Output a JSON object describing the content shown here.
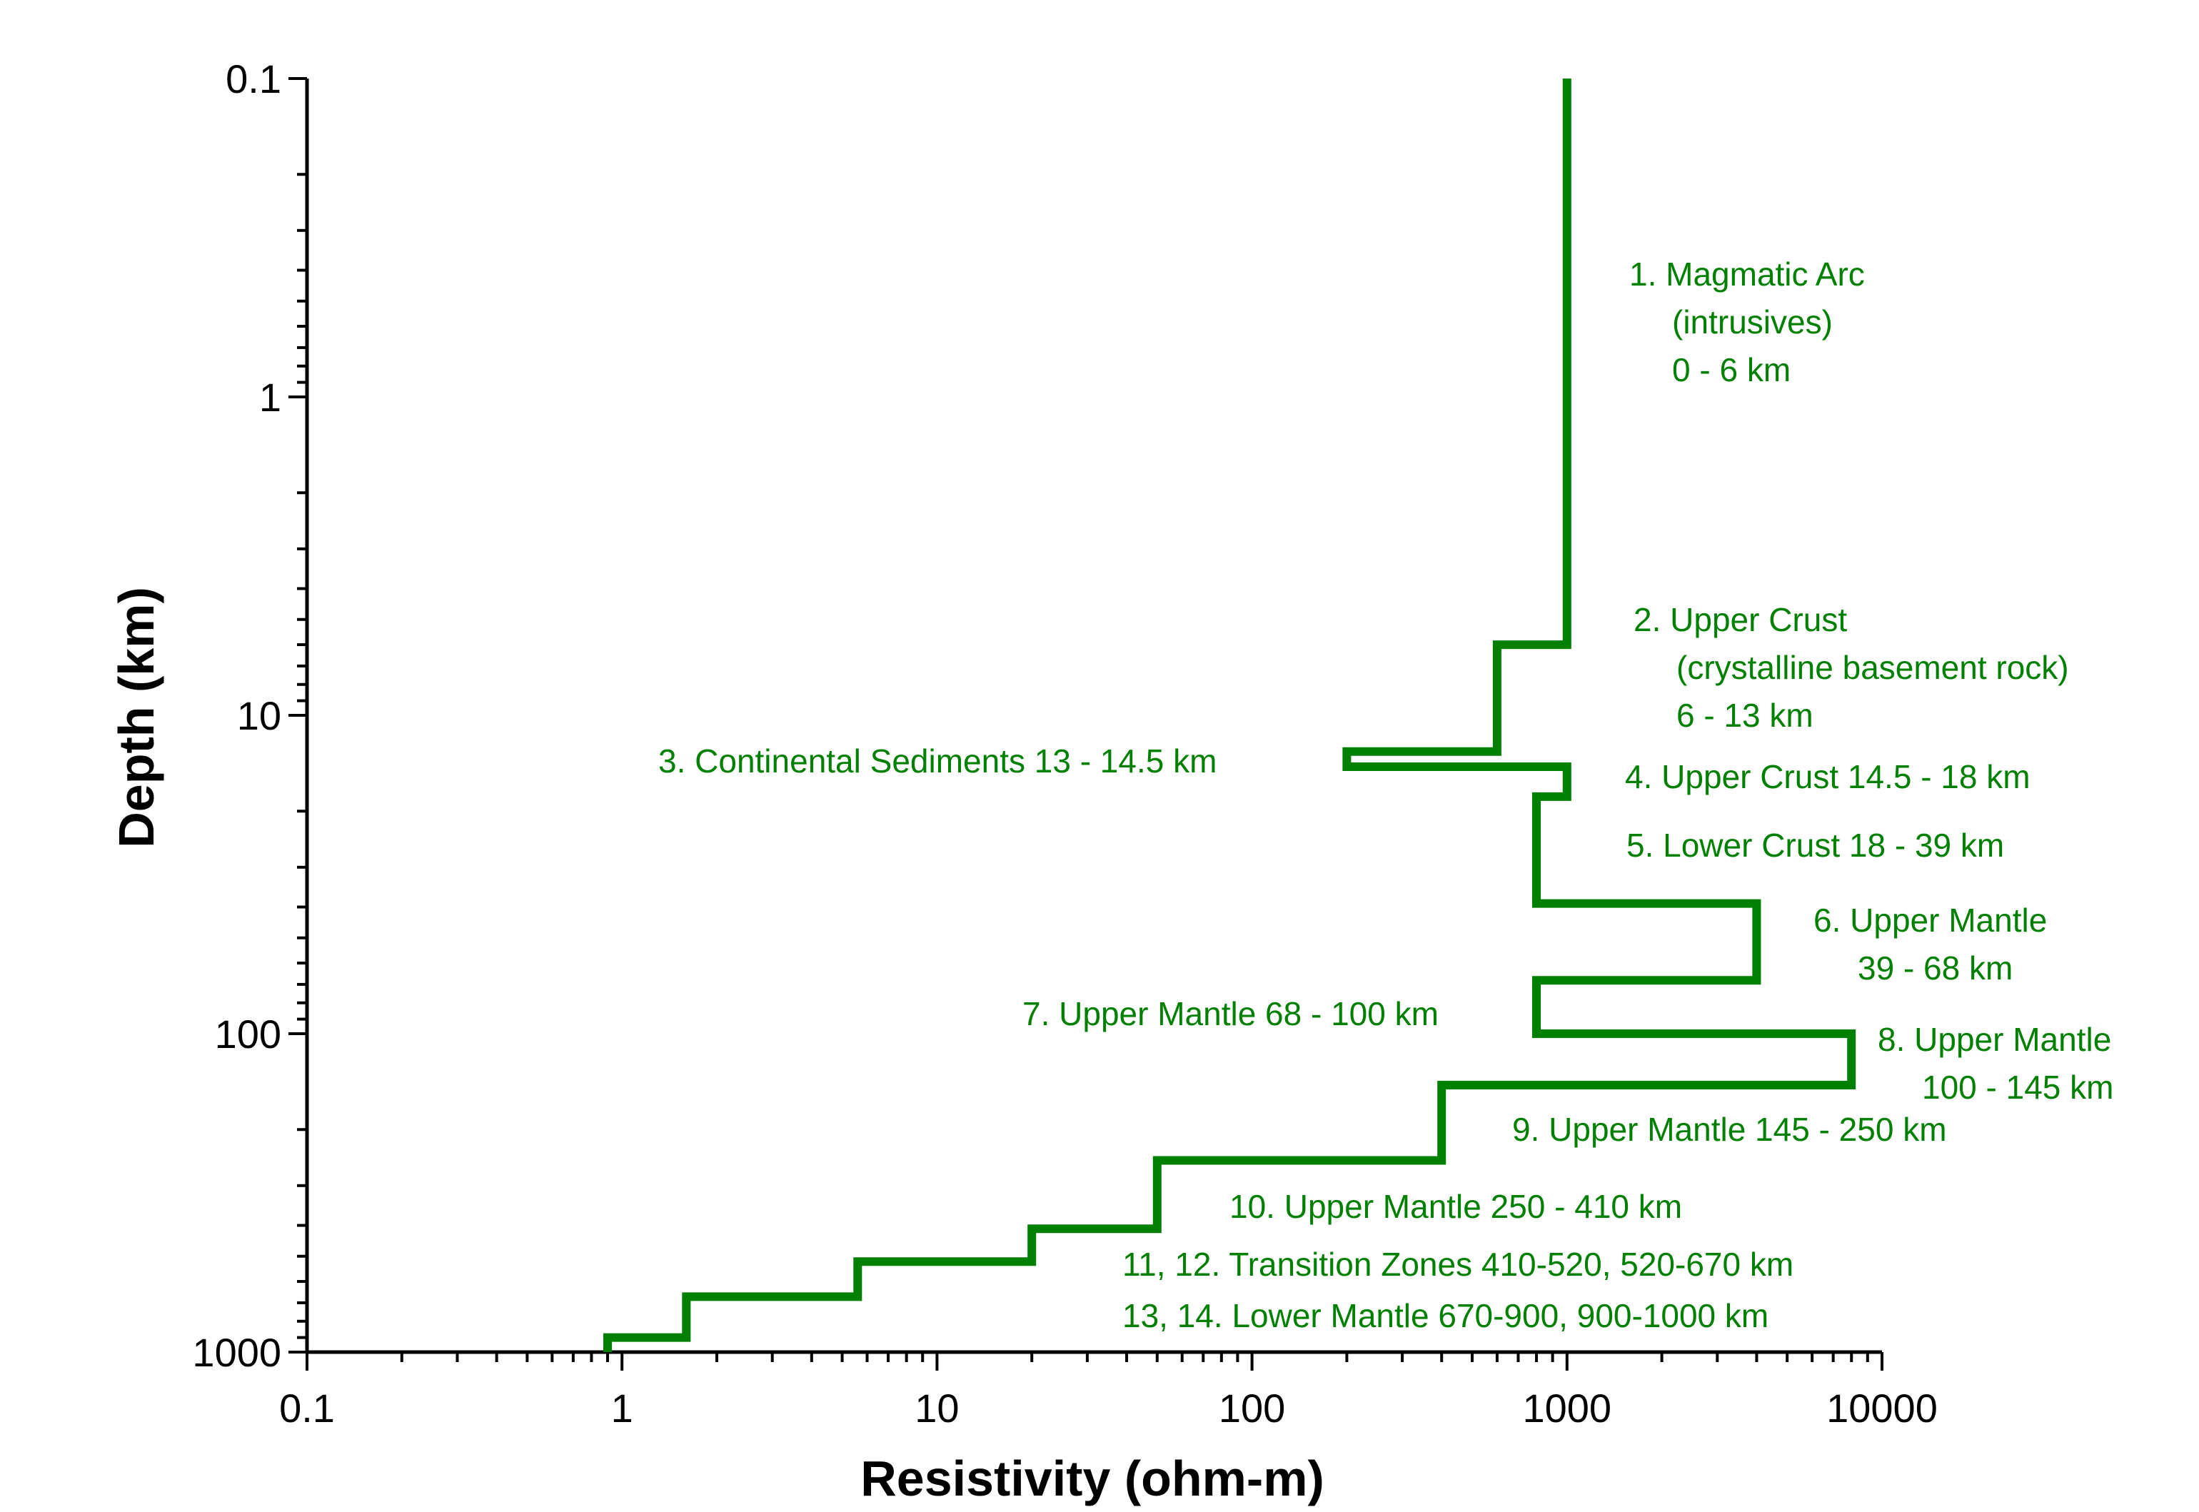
{
  "chart_data": {
    "type": "line",
    "step": true,
    "xlabel": "Resistivity (ohm-m)",
    "ylabel": "Depth (km)",
    "x_scale": "log",
    "y_scale": "log",
    "y_inverted": true,
    "xlim": [
      0.1,
      10000
    ],
    "ylim": [
      0.1,
      1000
    ],
    "x_ticks": [
      "0.1",
      "1",
      "10",
      "100",
      "1000",
      "10000"
    ],
    "y_ticks": [
      "0.1",
      "1",
      "10",
      "100",
      "1000"
    ],
    "grid": false,
    "line_color": "#008000",
    "series": [
      {
        "points": [
          [
            1000,
            0.1
          ],
          [
            1000,
            6
          ],
          [
            600,
            6
          ],
          [
            600,
            13
          ],
          [
            200,
            13
          ],
          [
            200,
            14.5
          ],
          [
            1000,
            14.5
          ],
          [
            1000,
            18
          ],
          [
            800,
            18
          ],
          [
            800,
            39
          ],
          [
            4000,
            39
          ],
          [
            4000,
            68
          ],
          [
            800,
            68
          ],
          [
            800,
            100
          ],
          [
            8000,
            100
          ],
          [
            8000,
            145
          ],
          [
            400,
            145
          ],
          [
            400,
            250
          ],
          [
            50,
            250
          ],
          [
            50,
            410
          ],
          [
            20,
            410
          ],
          [
            20,
            520
          ],
          [
            5.6,
            520
          ],
          [
            5.6,
            670
          ],
          [
            1.6,
            670
          ],
          [
            1.6,
            900
          ],
          [
            0.9,
            900
          ],
          [
            0.9,
            1000
          ]
        ]
      }
    ],
    "annotations": [
      {
        "lines": [
          "1. Magmatic Arc",
          "(intrusives)",
          "0 - 6 km"
        ]
      },
      {
        "lines": [
          "2. Upper Crust",
          "(crystalline basement rock)",
          "6 - 13 km"
        ]
      },
      {
        "lines": [
          "3. Continental Sediments 13 - 14.5 km"
        ]
      },
      {
        "lines": [
          "4. Upper Crust 14.5 - 18 km"
        ]
      },
      {
        "lines": [
          "5. Lower Crust 18 - 39 km"
        ]
      },
      {
        "lines": [
          "6. Upper Mantle",
          "39 - 68 km"
        ]
      },
      {
        "lines": [
          "7. Upper Mantle 68 - 100 km"
        ]
      },
      {
        "lines": [
          "8. Upper Mantle",
          "100 - 145 km"
        ]
      },
      {
        "lines": [
          "9. Upper Mantle  145 - 250 km"
        ]
      },
      {
        "lines": [
          "10. Upper Mantle  250 - 410 km"
        ]
      },
      {
        "lines": [
          "11, 12. Transition Zones 410-520, 520-670 km"
        ]
      },
      {
        "lines": [
          "13, 14. Lower Mantle 670-900, 900-1000 km"
        ]
      }
    ]
  }
}
